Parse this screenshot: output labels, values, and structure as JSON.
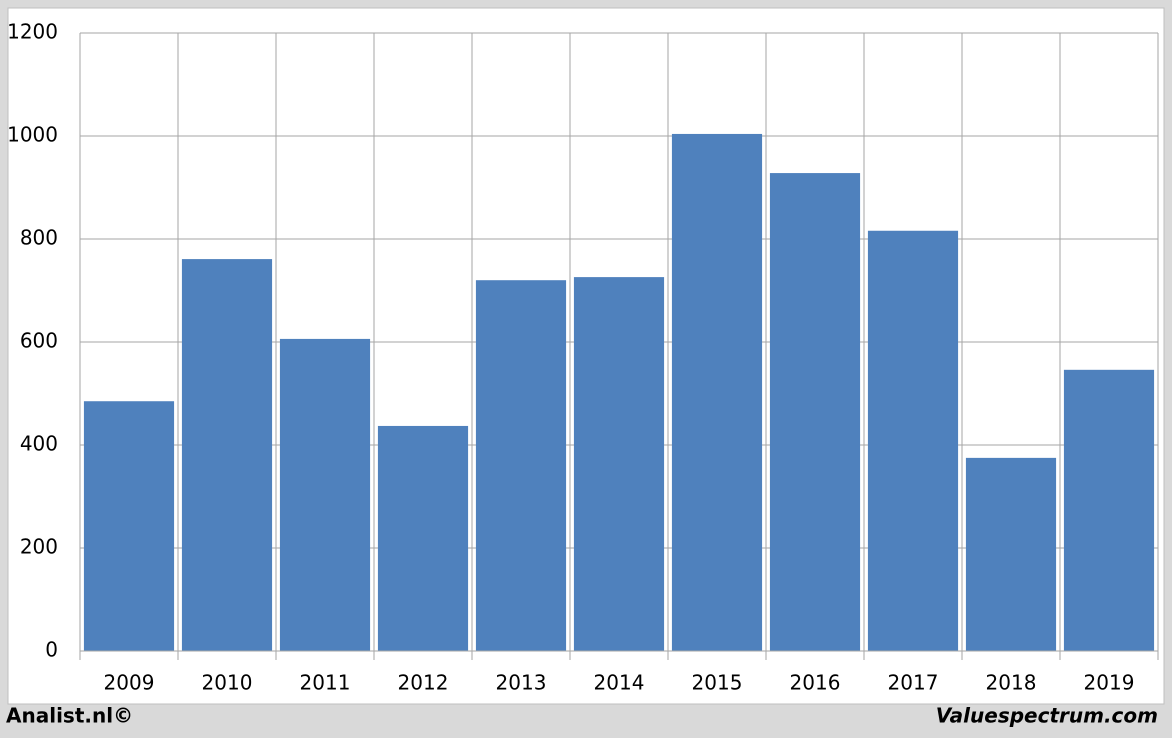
{
  "chart_data": {
    "type": "bar",
    "categories": [
      "2009",
      "2010",
      "2011",
      "2012",
      "2013",
      "2014",
      "2015",
      "2016",
      "2017",
      "2018",
      "2019"
    ],
    "values": [
      485,
      761,
      606,
      437,
      720,
      726,
      1004,
      928,
      816,
      375,
      546
    ],
    "color": "#4f81bd",
    "ylim": [
      0,
      1200
    ],
    "yticks": [
      0,
      200,
      400,
      600,
      800,
      1000,
      1200
    ],
    "grid": true
  },
  "footer": {
    "left": "Analist.nl©",
    "right": "Valuespectrum.com"
  }
}
